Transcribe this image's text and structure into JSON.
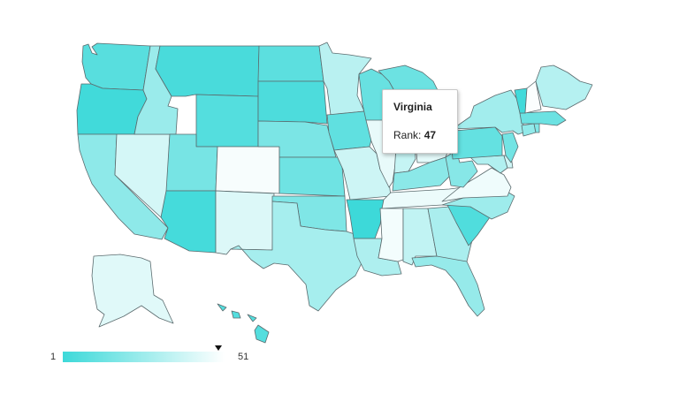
{
  "map": {
    "color_scale": {
      "min_label": "1",
      "max_label": "51",
      "low_color": "#3dd9d9",
      "high_color": "#ffffff"
    },
    "tooltip": {
      "state": "Virginia",
      "rank_label": "Rank:",
      "rank_value": "47"
    },
    "states": [
      {
        "name": "Washington",
        "rank": 8
      },
      {
        "name": "Oregon",
        "rank": 2
      },
      {
        "name": "California",
        "rank": 22
      },
      {
        "name": "Nevada",
        "rank": 40
      },
      {
        "name": "Idaho",
        "rank": 25
      },
      {
        "name": "Montana",
        "rank": 4
      },
      {
        "name": "Wyoming",
        "rank": 7
      },
      {
        "name": "Utah",
        "rank": 16
      },
      {
        "name": "Colorado",
        "rank": 49
      },
      {
        "name": "Arizona",
        "rank": 3
      },
      {
        "name": "New Mexico",
        "rank": 42
      },
      {
        "name": "North Dakota",
        "rank": 9
      },
      {
        "name": "South Dakota",
        "rank": 5
      },
      {
        "name": "Nebraska",
        "rank": 17
      },
      {
        "name": "Kansas",
        "rank": 14
      },
      {
        "name": "Oklahoma",
        "rank": 18
      },
      {
        "name": "Texas",
        "rank": 28
      },
      {
        "name": "Minnesota",
        "rank": 33
      },
      {
        "name": "Iowa",
        "rank": 10
      },
      {
        "name": "Missouri",
        "rank": 38
      },
      {
        "name": "Arkansas",
        "rank": 1
      },
      {
        "name": "Louisiana",
        "rank": 30
      },
      {
        "name": "Wisconsin",
        "rank": 12
      },
      {
        "name": "Illinois",
        "rank": 45
      },
      {
        "name": "Michigan",
        "rank": 13
      },
      {
        "name": "Indiana",
        "rank": 36
      },
      {
        "name": "Ohio",
        "rank": 44
      },
      {
        "name": "Kentucky",
        "rank": 21
      },
      {
        "name": "Tennessee",
        "rank": 46
      },
      {
        "name": "Mississippi",
        "rank": 48
      },
      {
        "name": "Alabama",
        "rank": 35
      },
      {
        "name": "Georgia",
        "rank": 29
      },
      {
        "name": "Florida",
        "rank": 24
      },
      {
        "name": "South Carolina",
        "rank": 6
      },
      {
        "name": "North Carolina",
        "rank": 26
      },
      {
        "name": "Virginia",
        "rank": 47
      },
      {
        "name": "West Virginia",
        "rank": 20
      },
      {
        "name": "Maryland",
        "rank": 31
      },
      {
        "name": "Delaware",
        "rank": 39
      },
      {
        "name": "Pennsylvania",
        "rank": 11
      },
      {
        "name": "New Jersey",
        "rank": 15
      },
      {
        "name": "New York",
        "rank": 27
      },
      {
        "name": "Connecticut",
        "rank": 23
      },
      {
        "name": "Rhode Island",
        "rank": 19
      },
      {
        "name": "Massachusetts",
        "rank": 13
      },
      {
        "name": "Vermont",
        "rank": 2
      },
      {
        "name": "New Hampshire",
        "rank": 50
      },
      {
        "name": "Maine",
        "rank": 32
      },
      {
        "name": "Alaska",
        "rank": 43
      },
      {
        "name": "Hawaii",
        "rank": 7
      }
    ]
  }
}
